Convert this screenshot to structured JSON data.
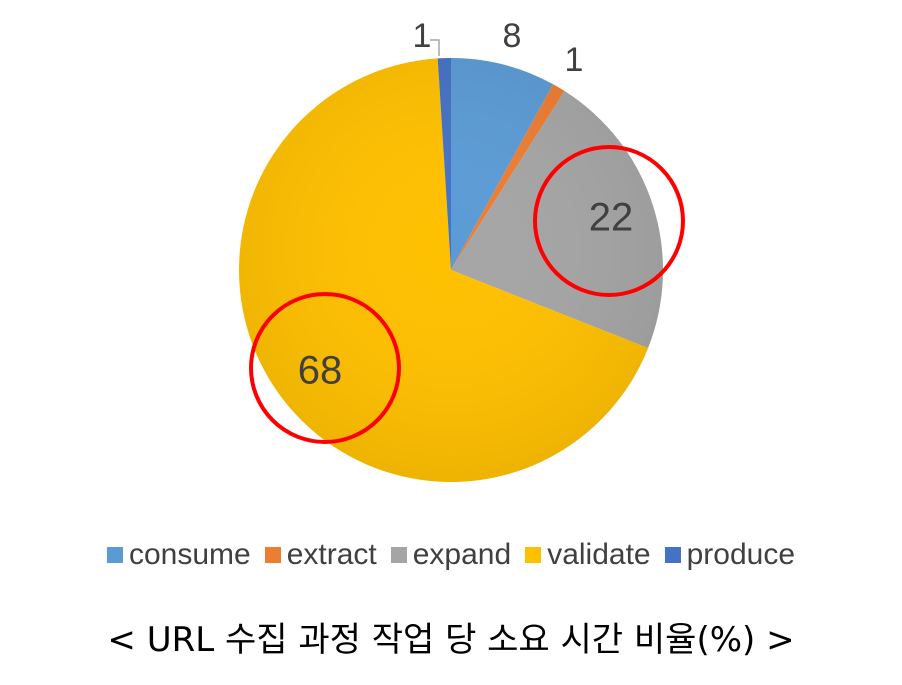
{
  "chart_data": {
    "type": "pie",
    "categories": [
      "consume",
      "extract",
      "expand",
      "validate",
      "produce"
    ],
    "values": [
      8,
      1,
      22,
      68,
      1
    ],
    "data_labels": [
      "8",
      "1",
      "22",
      "68",
      "1"
    ],
    "colors": [
      "#5B9BD5",
      "#ED7D31",
      "#A5A5A5",
      "#FFC000",
      "#4472C4"
    ],
    "highlighted_categories": [
      "expand",
      "validate"
    ],
    "highlight_color": "#FF0000",
    "legend_position": "bottom",
    "caption": "< URL 수집 과정 작업 당 소요 시간 비율(%) >"
  }
}
